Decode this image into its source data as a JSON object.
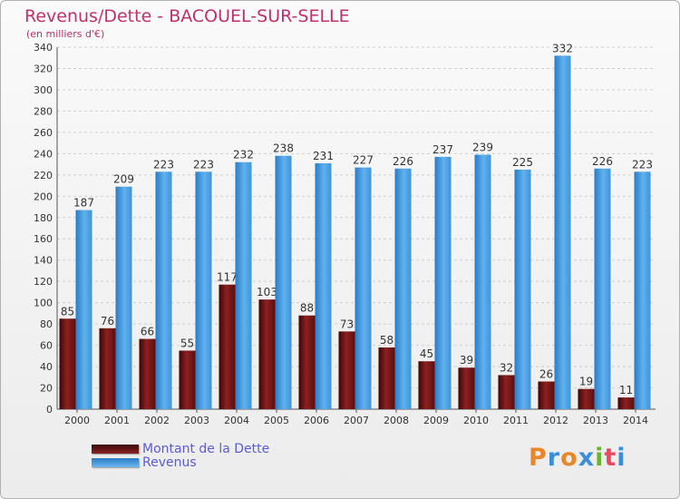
{
  "header": {
    "title": "Revenus/Dette - BACOUEL-SUR-SELLE",
    "subtitle": "(en milliers d'€)"
  },
  "legend": [
    {
      "label": "Montant de la Dette",
      "color": "#7a1a1a"
    },
    {
      "label": "Revenus",
      "color": "#4aa3e6"
    }
  ],
  "logo": {
    "text": "Proxiti",
    "colors": [
      "#e8862a",
      "#3a8fd8",
      "#e8862a",
      "#3a8fd8",
      "#6ab42e",
      "#e84a5f",
      "#3a8fd8"
    ]
  },
  "chart_data": {
    "type": "bar",
    "title": "Revenus/Dette - BACOUEL-SUR-SELLE",
    "ylabel": "(en milliers d'€)",
    "xlabel": "",
    "ylim": [
      0,
      340
    ],
    "yticks": [
      0,
      20,
      40,
      60,
      80,
      100,
      120,
      140,
      160,
      180,
      200,
      220,
      240,
      260,
      280,
      300,
      320,
      340
    ],
    "grid": true,
    "legend_position": "bottom-left",
    "categories": [
      "2000",
      "2001",
      "2002",
      "2003",
      "2004",
      "2005",
      "2006",
      "2007",
      "2008",
      "2009",
      "2010",
      "2011",
      "2012",
      "2013",
      "2014"
    ],
    "series": [
      {
        "name": "Montant de la Dette",
        "color": "#7a1a1a",
        "values": [
          85,
          76,
          66,
          55,
          117,
          103,
          88,
          73,
          58,
          45,
          39,
          32,
          26,
          19,
          11
        ]
      },
      {
        "name": "Revenus",
        "color": "#4aa3e6",
        "values": [
          187,
          209,
          223,
          223,
          232,
          238,
          231,
          227,
          226,
          237,
          239,
          225,
          332,
          226,
          223
        ]
      }
    ]
  }
}
